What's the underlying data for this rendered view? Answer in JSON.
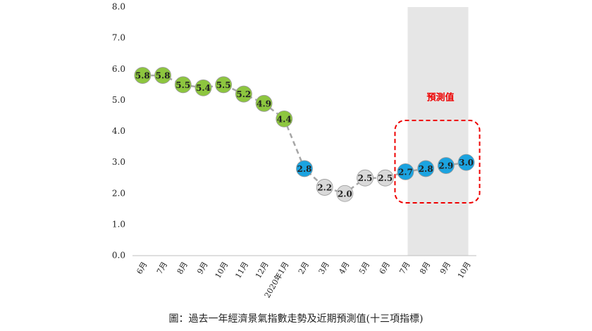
{
  "chart_data": {
    "type": "line",
    "categories": [
      "6月",
      "7月",
      "8月",
      "9月",
      "10月",
      "11月",
      "12月",
      "2020年1月",
      "2月",
      "3月",
      "4月",
      "5月",
      "6月",
      "7月",
      "8月",
      "9月",
      "10月"
    ],
    "values": [
      5.8,
      5.8,
      5.5,
      5.4,
      5.5,
      5.2,
      4.9,
      4.4,
      2.8,
      2.2,
      2.0,
      2.5,
      2.5,
      2.7,
      2.8,
      2.9,
      3.0
    ],
    "value_labels": [
      "5.8",
      "5.8",
      "5.5",
      "5.4",
      "5.5",
      "5.2",
      "4.9",
      "4.4",
      "2.8",
      "2.2",
      "2.0",
      "2.5",
      "2.5",
      "2.7",
      "2.8",
      "2.9",
      "3.0"
    ],
    "point_colors": [
      "#8dc63f",
      "#8dc63f",
      "#8dc63f",
      "#8dc63f",
      "#8dc63f",
      "#8dc63f",
      "#8dc63f",
      "#8dc63f",
      "#1ba3e0",
      "#d9d9d9",
      "#d9d9d9",
      "#d9d9d9",
      "#d9d9d9",
      "#1ba3e0",
      "#1ba3e0",
      "#1ba3e0",
      "#1ba3e0"
    ],
    "line_color": "#a6a6a6",
    "ylim": [
      0,
      8
    ],
    "yticks": [
      {
        "value": 0,
        "label": "0.0"
      },
      {
        "value": 1,
        "label": "1.0"
      },
      {
        "value": 2,
        "label": "2.0"
      },
      {
        "value": 3,
        "label": "3.0"
      },
      {
        "value": 4,
        "label": "4.0"
      },
      {
        "value": 5,
        "label": "5.0"
      },
      {
        "value": 6,
        "label": "6.0"
      },
      {
        "value": 7,
        "label": "7.0"
      },
      {
        "value": 8,
        "label": "8.0"
      }
    ],
    "annotation": "預測值",
    "caption": "圖：過去一年經濟景氣指數走勢及近期預測值(十三項指標)"
  }
}
